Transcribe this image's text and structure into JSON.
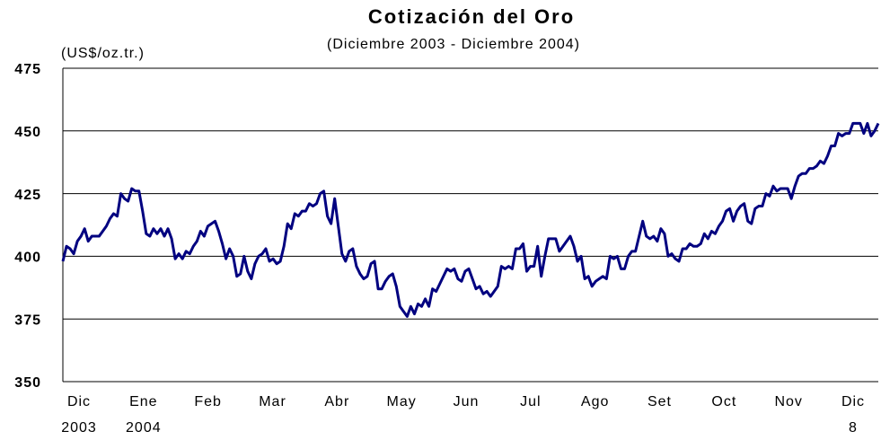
{
  "chart_data": {
    "type": "line",
    "title": "Cotización del Oro",
    "subtitle": "(Diciembre 2003 - Diciembre 2004)",
    "y_label": "(US$/oz.tr.)",
    "month_labels": [
      "Dic",
      "Ene",
      "Feb",
      "Mar",
      "Abr",
      "May",
      "Jun",
      "Jul",
      "Ago",
      "Set",
      "Oct",
      "Nov",
      "Dic"
    ],
    "year_labels": [
      "2003",
      "2004",
      null,
      null,
      null,
      null,
      null,
      null,
      null,
      null,
      null,
      null,
      "8"
    ],
    "ylim": [
      350,
      475
    ],
    "yticks": [
      350,
      375,
      400,
      425,
      450,
      475
    ],
    "grid": true,
    "series": [
      {
        "color": "#000080",
        "values": [
          398,
          404,
          403,
          401,
          406,
          408,
          411,
          406,
          408,
          408,
          408,
          410,
          412,
          415,
          417,
          416,
          425,
          423,
          422,
          427,
          426,
          426,
          418,
          409,
          408,
          411,
          409,
          411,
          408,
          411,
          407,
          399,
          401,
          399,
          402,
          401,
          404,
          406,
          410,
          408,
          412,
          413,
          414,
          410,
          405,
          399,
          403,
          400,
          392,
          393,
          400,
          394,
          391,
          397,
          400,
          401,
          403,
          398,
          399,
          397,
          398,
          404,
          413,
          411,
          417,
          416,
          418,
          418,
          421,
          420,
          421,
          425,
          426,
          416,
          413,
          423,
          412,
          401,
          398,
          402,
          403,
          396,
          393,
          391,
          392,
          397,
          398,
          387,
          387,
          390,
          392,
          393,
          388,
          380,
          378,
          376,
          380,
          377,
          381,
          380,
          383,
          380,
          387,
          386,
          389,
          392,
          395,
          394,
          395,
          391,
          390,
          394,
          395,
          391,
          387,
          388,
          385,
          386,
          384,
          386,
          388,
          396,
          395,
          396,
          395,
          403,
          403,
          405,
          394,
          396,
          396,
          404,
          392,
          400,
          407,
          407,
          407,
          402,
          404,
          406,
          408,
          404,
          398,
          400,
          391,
          392,
          388,
          390,
          391,
          392,
          391,
          400,
          399,
          400,
          395,
          395,
          400,
          402,
          402,
          408,
          414,
          408,
          407,
          408,
          406,
          411,
          409,
          400,
          401,
          399,
          398,
          403,
          403,
          405,
          404,
          404,
          405,
          409,
          407,
          410,
          409,
          412,
          414,
          418,
          419,
          414,
          418,
          420,
          421,
          414,
          413,
          419,
          420,
          420,
          425,
          424,
          428,
          426,
          427,
          427,
          427,
          423,
          428,
          432,
          433,
          433,
          435,
          435,
          436,
          438,
          437,
          440,
          444,
          444,
          449,
          448,
          449,
          449,
          453,
          453,
          453,
          449,
          453,
          448,
          450,
          453
        ]
      }
    ]
  }
}
